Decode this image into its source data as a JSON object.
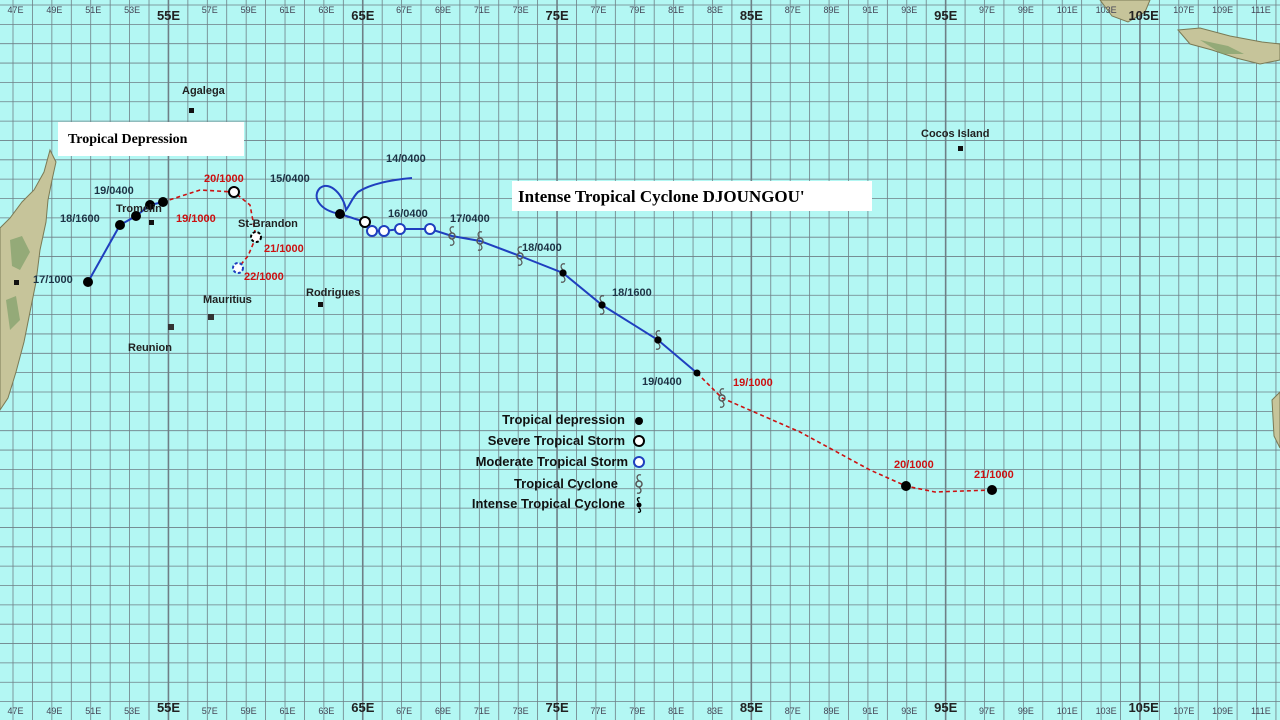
{
  "map_labels": {
    "cyclone_title": "Intense Tropical Cyclone DJOUNGOU'",
    "depression_title": "Tropical Depression"
  },
  "longitude_ticks": {
    "small": [
      "47E",
      "49E",
      "51E",
      "53E",
      "57E",
      "59E",
      "61E",
      "63E",
      "67E",
      "69E",
      "71E",
      "73E",
      "77E",
      "79E",
      "81E",
      "83E",
      "87E",
      "89E",
      "91E",
      "93E",
      "97E",
      "99E",
      "101E",
      "103E",
      "107E",
      "109E",
      "111E"
    ],
    "big": [
      "55E",
      "65E",
      "75E",
      "85E",
      "95E",
      "105E"
    ]
  },
  "places": {
    "agalega": "Agalega",
    "tromelin": "Tromelin",
    "st_brandon": "St-Brandon",
    "mauritius": "Mauritius",
    "reunion": "Reunion",
    "rodrigues": "Rodrigues",
    "cocos": "Cocos Island"
  },
  "track_labels": {
    "d_17_1000": "17/1000",
    "d_18_1600": "18/1600",
    "d_19_0400": "19/0400",
    "d_19_1000": "19/1000",
    "d_20_1000": "20/1000",
    "d_21_1000": "21/1000",
    "d_22_1000": "22/1000",
    "c_14_0400": "14/0400",
    "c_15_0400": "15/0400",
    "c_16_0400": "16/0400",
    "c_17_0400": "17/0400",
    "c_18_0400": "18/0400",
    "c_18_1600": "18/1600",
    "c_19_0400": "19/0400",
    "c_19_1000": "19/1000",
    "c_20_1000": "20/1000",
    "c_21_1000": "21/1000"
  },
  "legend": {
    "tropical_depression": "Tropical depression",
    "severe_tropical_storm": "Severe Tropical Storm",
    "moderate_tropical_storm": "Moderate Tropical Storm",
    "tropical_cyclone": "Tropical Cyclone",
    "intense_tropical_cyclone": "Intense Tropical Cyclone"
  },
  "colors": {
    "ocean": "#b3f7f3",
    "grid": "#6e7f86",
    "track": "#1f3fbf",
    "forecast": "#cc1111",
    "land": "#c6c49a"
  }
}
